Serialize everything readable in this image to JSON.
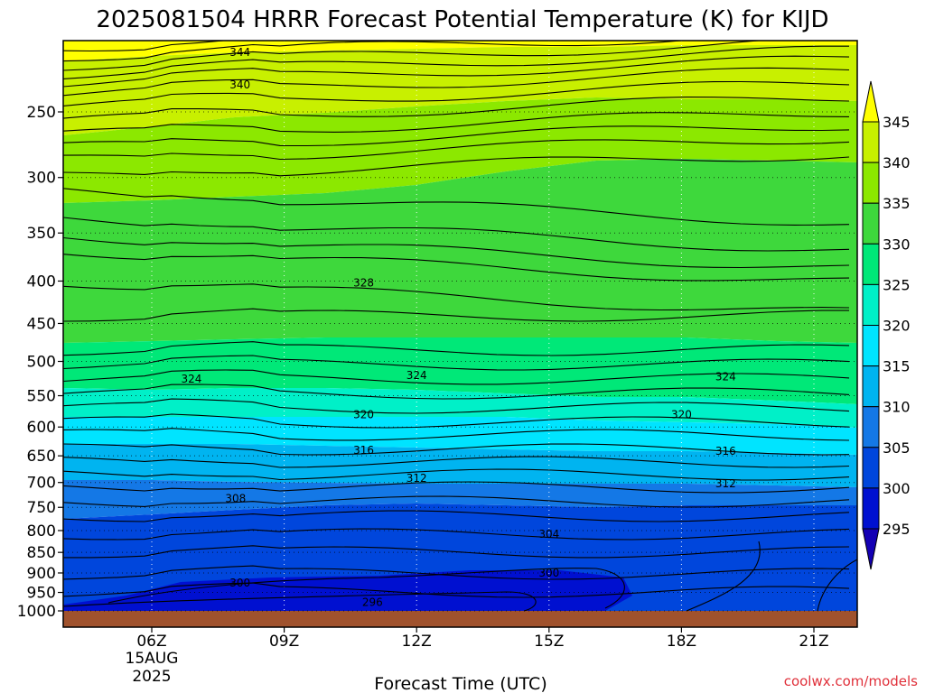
{
  "chart_data": {
    "type": "contour",
    "title": "2025081504 HRRR Forecast Potential Temperature (K) for KIJD",
    "xlabel": "Forecast Time (UTC)",
    "ylabel": "",
    "credit": "coolwx.com/models",
    "x_ticks": [
      {
        "label": "06Z",
        "sub1": "15AUG",
        "sub2": "2025"
      },
      {
        "label": "09Z"
      },
      {
        "label": "12Z"
      },
      {
        "label": "15Z"
      },
      {
        "label": "18Z"
      },
      {
        "label": "21Z"
      }
    ],
    "y_axis": {
      "scale": "log",
      "range": [
        1000,
        200
      ],
      "ticks": [
        250,
        300,
        350,
        400,
        450,
        500,
        550,
        600,
        650,
        700,
        750,
        800,
        850,
        900,
        950,
        1000
      ]
    },
    "colorbar": {
      "ticks": [
        345,
        340,
        335,
        330,
        325,
        320,
        315,
        310,
        305,
        300,
        295
      ],
      "colors": [
        "#ffff00",
        "#c8f000",
        "#8ce800",
        "#3ed83c",
        "#00e878",
        "#00f0c8",
        "#00e4ff",
        "#00b4f0",
        "#1478e6",
        "#0046dc",
        "#0010d0",
        "#1400b4"
      ]
    },
    "contour_labels": [
      {
        "text": "344",
        "time": 8.0,
        "pres": 212
      },
      {
        "text": "340",
        "time": 8.0,
        "pres": 232
      },
      {
        "text": "328",
        "time": 10.8,
        "pres": 402
      },
      {
        "text": "324",
        "time": 6.9,
        "pres": 525
      },
      {
        "text": "324",
        "time": 12.0,
        "pres": 520
      },
      {
        "text": "324",
        "time": 19.0,
        "pres": 522
      },
      {
        "text": "320",
        "time": 10.8,
        "pres": 580
      },
      {
        "text": "320",
        "time": 18.0,
        "pres": 580
      },
      {
        "text": "316",
        "time": 10.8,
        "pres": 640
      },
      {
        "text": "316",
        "time": 19.0,
        "pres": 642
      },
      {
        "text": "312",
        "time": 12.0,
        "pres": 692
      },
      {
        "text": "312",
        "time": 19.0,
        "pres": 702
      },
      {
        "text": "308",
        "time": 7.9,
        "pres": 732
      },
      {
        "text": "304",
        "time": 15.0,
        "pres": 808
      },
      {
        "text": "300",
        "time": 8.0,
        "pres": 925
      },
      {
        "text": "300",
        "time": 15.0,
        "pres": 900
      },
      {
        "text": "296",
        "time": 11.0,
        "pres": 976
      }
    ]
  }
}
